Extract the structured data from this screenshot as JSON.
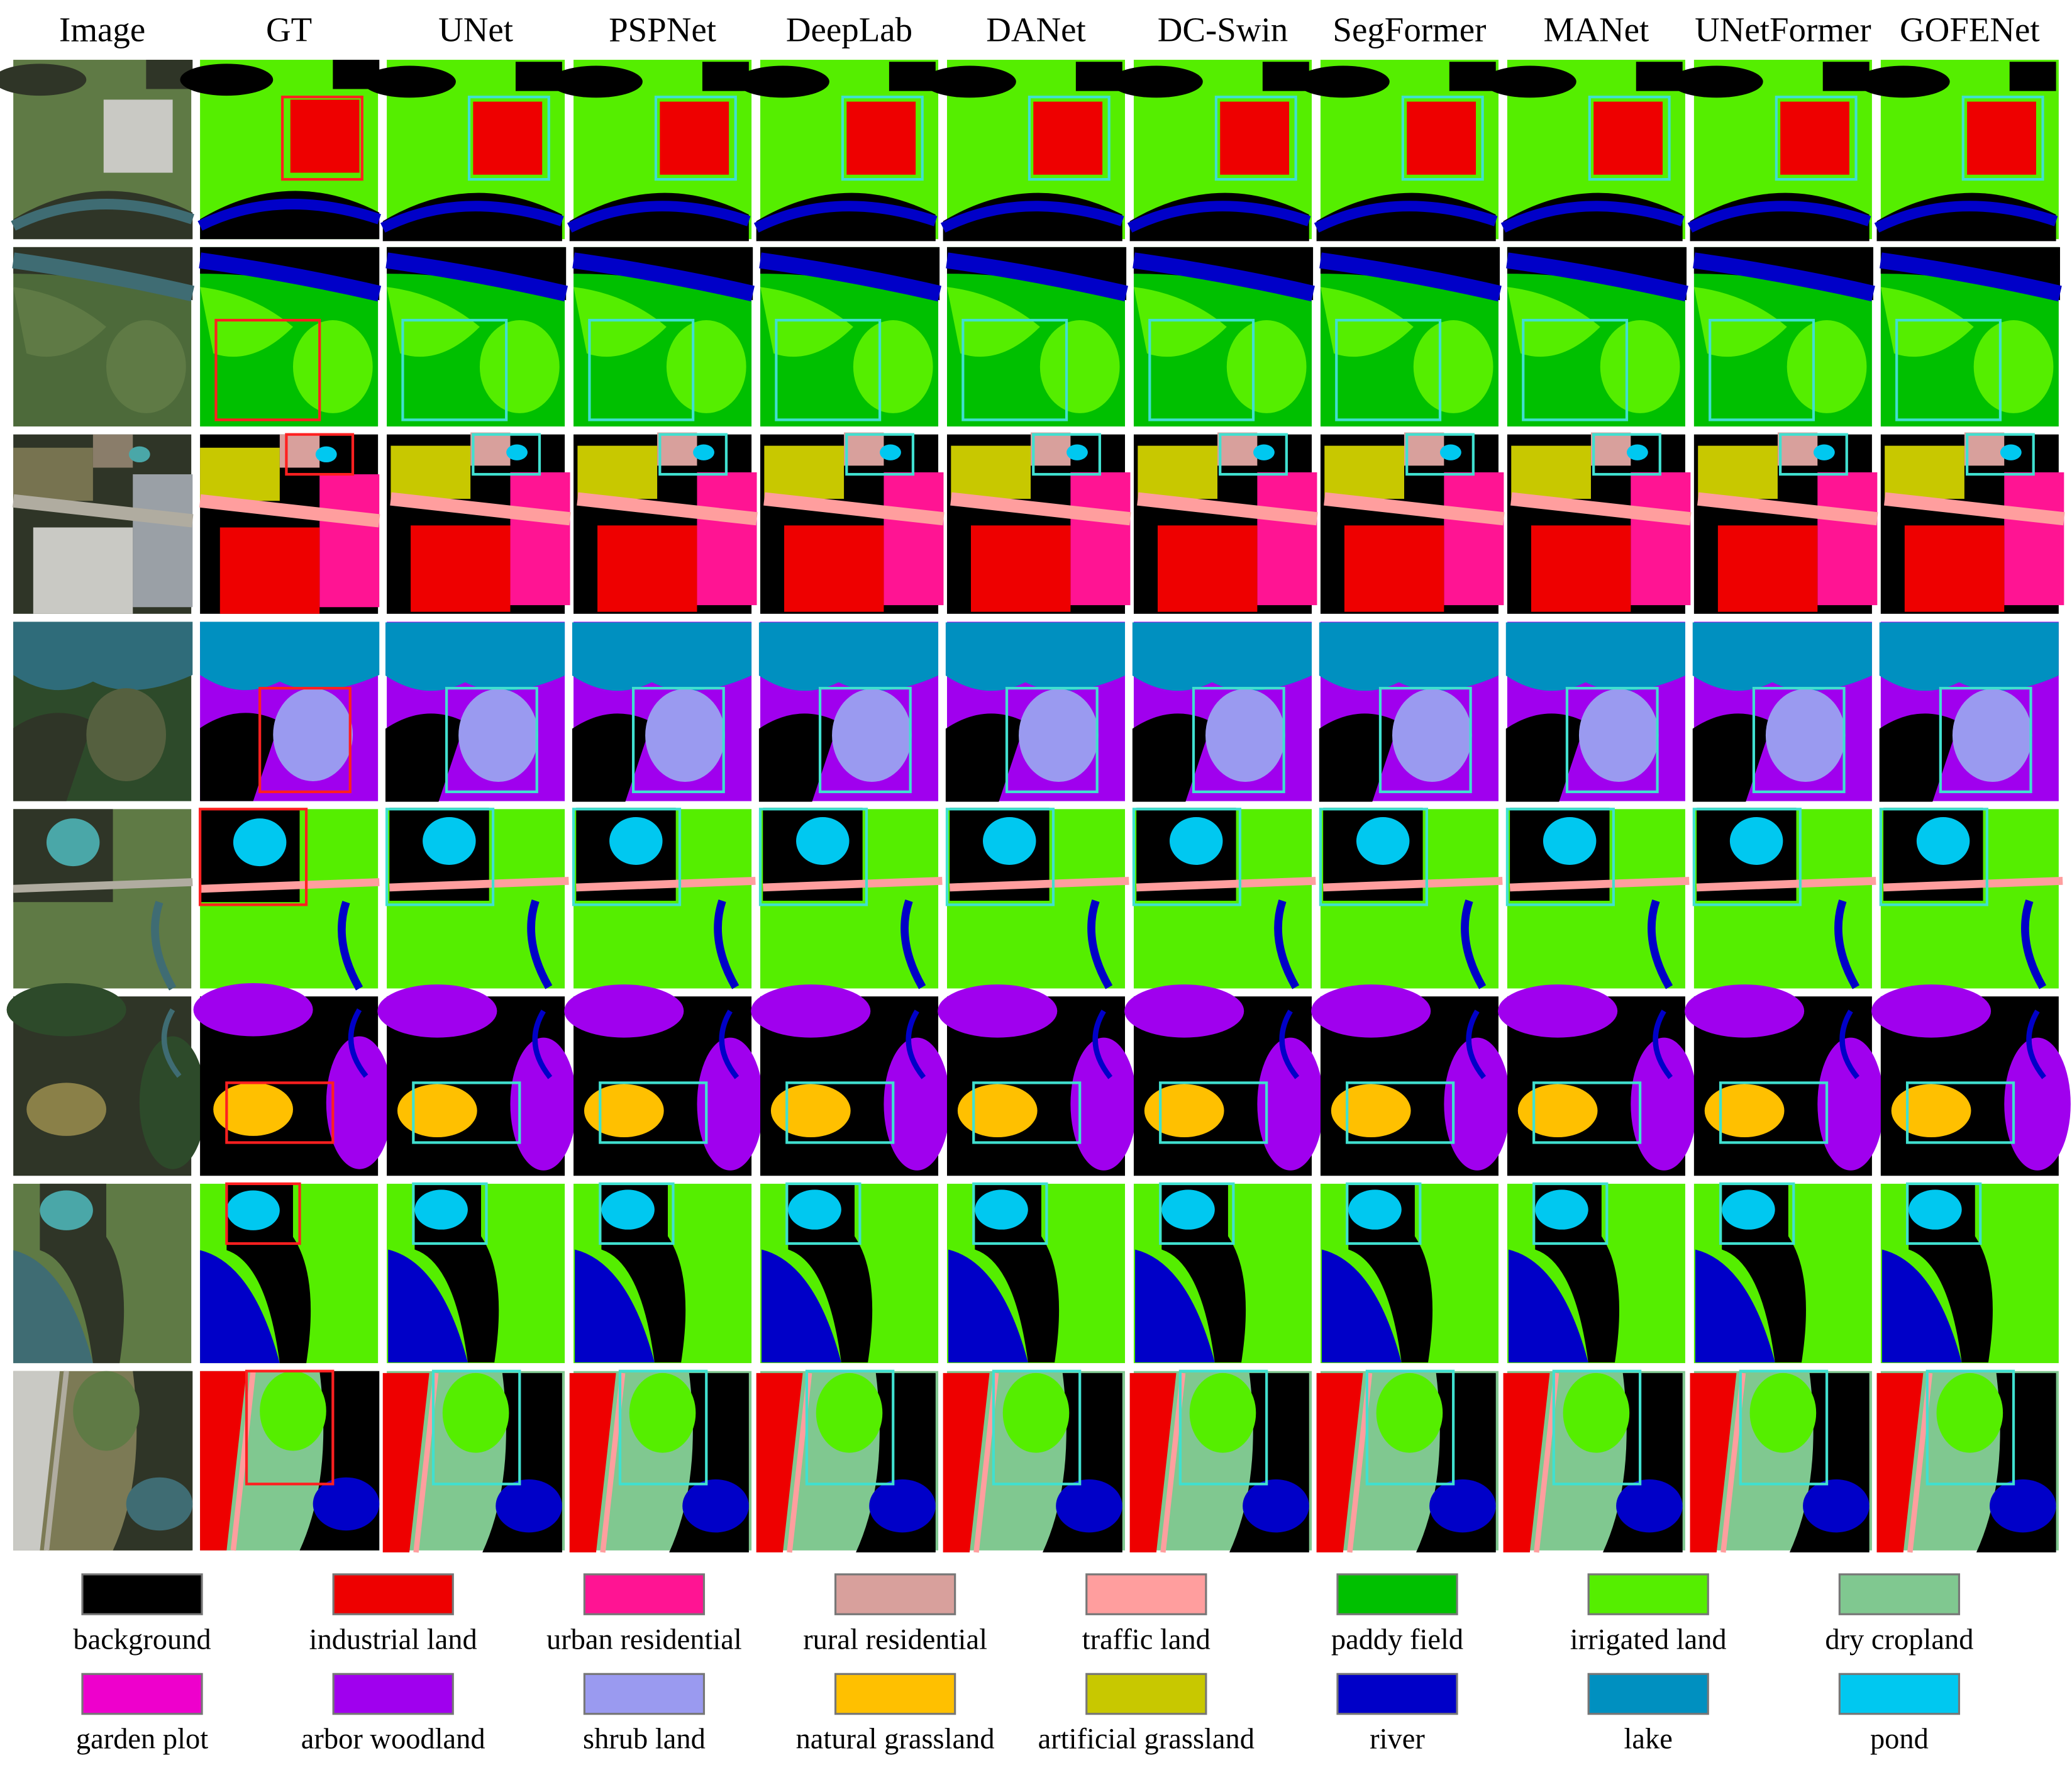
{
  "header": {
    "columns": [
      "Image",
      "GT",
      "UNet",
      "PSPNet",
      "DeepLab",
      "DANet",
      "DC-Swin",
      "SegFormer",
      "MANet",
      "UNetFormer",
      "GOFENet"
    ]
  },
  "legend": {
    "items": [
      {
        "label": "background",
        "color": "#000000"
      },
      {
        "label": "industrial land",
        "color": "#ee0000"
      },
      {
        "label": "urban residential",
        "color": "#ff1493"
      },
      {
        "label": "rural residential",
        "color": "#d8a09c"
      },
      {
        "label": "traffic land",
        "color": "#ff9e9e"
      },
      {
        "label": "paddy field",
        "color": "#00c000"
      },
      {
        "label": "irrigated land",
        "color": "#55ee00"
      },
      {
        "label": "dry cropland",
        "color": "#80c890"
      },
      {
        "label": "garden plot",
        "color": "#ee00cc"
      },
      {
        "label": "arbor woodland",
        "color": "#a000ee"
      },
      {
        "label": "shrub land",
        "color": "#9a9af0"
      },
      {
        "label": "natural grassland",
        "color": "#ffc000"
      },
      {
        "label": "artificial grassland",
        "color": "#c8c800"
      },
      {
        "label": "river",
        "color": "#0000c8"
      },
      {
        "label": "lake",
        "color": "#0090c0"
      },
      {
        "label": "pond",
        "color": "#00c8f0"
      }
    ]
  }
}
